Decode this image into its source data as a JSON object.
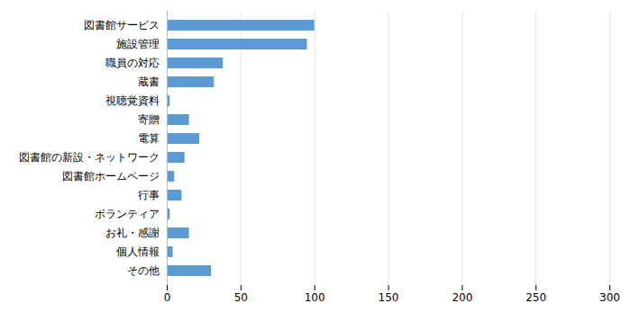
{
  "chart_data": {
    "type": "bar",
    "orientation": "horizontal",
    "categories": [
      "図書館サービス",
      "施設管理",
      "職員の対応",
      "蔵書",
      "視聴覚資料",
      "寄贈",
      "電算",
      "図書館の新設・ネットワーク",
      "図書館ホームページ",
      "行事",
      "ボランティア",
      "お礼・感謝",
      "個人情報",
      "その他"
    ],
    "values": [
      100,
      95,
      38,
      32,
      2,
      15,
      22,
      12,
      5,
      10,
      2,
      15,
      4,
      30
    ],
    "color": "#5B9BD5",
    "xlim": [
      0,
      300
    ],
    "xticks": [
      0,
      50,
      100,
      150,
      200,
      250,
      300
    ],
    "grid": true
  }
}
